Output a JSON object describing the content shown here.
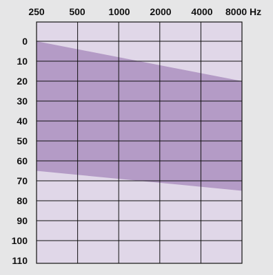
{
  "chart_data": {
    "type": "area",
    "x_ticks": [
      "250",
      "500",
      "1000",
      "2000",
      "4000",
      "8000 Hz"
    ],
    "y_ticks": [
      "0",
      "10",
      "20",
      "30",
      "40",
      "50",
      "60",
      "70",
      "80",
      "90",
      "100",
      "110"
    ],
    "ylim": [
      -3,
      110
    ],
    "y_inverted": true,
    "x_scale": "log",
    "grid": true,
    "series": [
      {
        "upper_boundary_db": [
          [
            250,
            0
          ],
          [
            8000,
            20
          ]
        ],
        "lower_boundary_db": [
          [
            250,
            65
          ],
          [
            8000,
            75
          ]
        ]
      }
    ],
    "colors": {
      "plot_background": "#e0d7e8",
      "band_fill": "#b49bc6",
      "grid_line": "#111111",
      "page_background": "#e6e6e7"
    }
  }
}
